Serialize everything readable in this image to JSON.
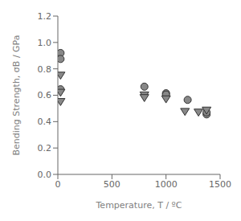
{
  "chart_data": {
    "type": "scatter",
    "xlabel": "Temperature, T / ºC",
    "ylabel": "Bending Strength, σB / GPa",
    "xlim": [
      0,
      1500
    ],
    "ylim": [
      0,
      1.2
    ],
    "xticks": [
      0,
      500,
      1000,
      1500
    ],
    "yticks": [
      {
        "value": 0,
        "label": "0.0"
      },
      0.2,
      0.4,
      0.6,
      0.8,
      {
        "value": 1.0,
        "label": "1.0"
      },
      1.2
    ],
    "grid": false,
    "series": [
      {
        "x": [
          25,
          25,
          25,
          800,
          1000,
          1000,
          1200,
          1375,
          1375
        ],
        "values": [
          0.92,
          0.875,
          0.645,
          0.665,
          0.615,
          0.605,
          0.565,
          0.455,
          0.47
        ],
        "color": "#888888",
        "marker": "circle"
      },
      {
        "x": [
          25,
          25,
          25,
          800,
          800,
          1000,
          1175,
          1300,
          1375
        ],
        "values": [
          0.755,
          0.625,
          0.555,
          0.605,
          0.585,
          0.575,
          0.48,
          0.475,
          0.49
        ],
        "color": "#888888",
        "marker": "triangle-down"
      }
    ]
  }
}
